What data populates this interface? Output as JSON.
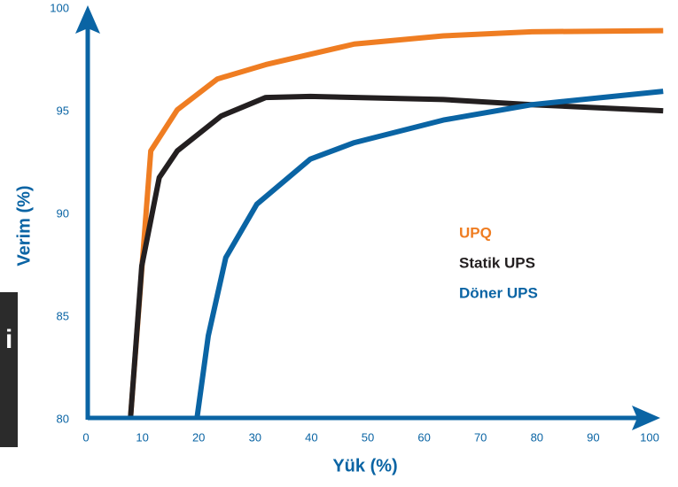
{
  "side_label": "i",
  "chart_data": {
    "type": "line",
    "xlabel": "Yük (%)",
    "ylabel": "Verim (%)",
    "xlim": [
      0,
      100
    ],
    "ylim": [
      80,
      100
    ],
    "xticks": [
      0,
      10,
      20,
      30,
      40,
      50,
      60,
      70,
      80,
      90,
      100
    ],
    "yticks": [
      80,
      85,
      90,
      95,
      100
    ],
    "axis_color": "#0a64a4",
    "series": [
      {
        "name": "UPQ",
        "color": "#ef7d22",
        "x": [
          7.9,
          11.5,
          16.2,
          23.3,
          31.9,
          47.6,
          63.4,
          79.1,
          102.4
        ],
        "values": [
          80,
          93.0,
          95.0,
          96.5,
          97.2,
          98.2,
          98.6,
          98.8,
          98.85
        ]
      },
      {
        "name": "Statik UPS",
        "color": "#231f20",
        "x": [
          7.9,
          9.9,
          13,
          16.2,
          24,
          31.9,
          39.8,
          63.4,
          79.1,
          102.4
        ],
        "values": [
          80,
          87.4,
          91.7,
          93.0,
          94.7,
          95.6,
          95.65,
          95.5,
          95.25,
          94.95
        ]
      },
      {
        "name": "Döner UPS",
        "color": "#0a64a4",
        "x": [
          19.7,
          21.7,
          24.8,
          30.3,
          39.8,
          47.6,
          63.4,
          79.1,
          102.4
        ],
        "values": [
          80,
          84,
          87.8,
          90.4,
          92.6,
          93.4,
          94.5,
          95.25,
          95.9
        ]
      }
    ]
  }
}
